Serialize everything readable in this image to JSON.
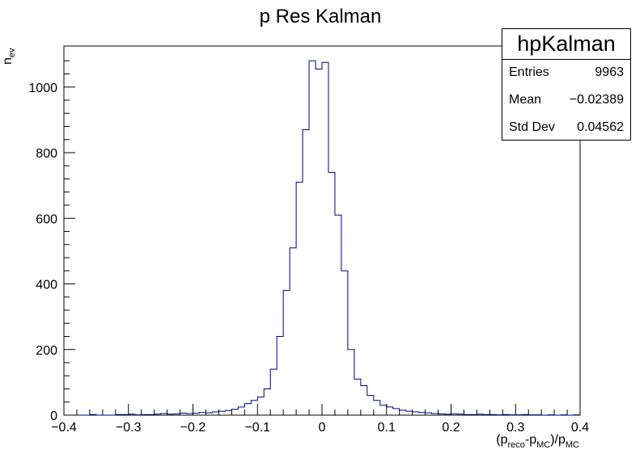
{
  "chart_data": {
    "type": "bar",
    "title": "p Res Kalman",
    "xlabel": "(p_reco-p_MC)/p_MC",
    "ylabel": "n_ev",
    "xlim": [
      -0.4,
      0.4
    ],
    "ylim": [
      0,
      1125
    ],
    "bin_width": 0.01,
    "x_ticks": [
      "−0.4",
      "−0.3",
      "−0.2",
      "−0.1",
      "0",
      "0.1",
      "0.2",
      "0.3",
      "0.4"
    ],
    "y_ticks": [
      "0",
      "200",
      "400",
      "600",
      "800",
      "1000"
    ],
    "line_color": "#000080",
    "bin_lows": [
      -0.4,
      -0.39,
      -0.38,
      -0.37,
      -0.36,
      -0.35,
      -0.34,
      -0.33,
      -0.32,
      -0.31,
      -0.3,
      -0.29,
      -0.28,
      -0.27,
      -0.26,
      -0.25,
      -0.24,
      -0.23,
      -0.22,
      -0.21,
      -0.2,
      -0.19,
      -0.18,
      -0.17,
      -0.16,
      -0.15,
      -0.14,
      -0.13,
      -0.12,
      -0.11,
      -0.1,
      -0.09,
      -0.08,
      -0.07,
      -0.06,
      -0.05,
      -0.04,
      -0.03,
      -0.02,
      -0.01,
      0.0,
      0.01,
      0.02,
      0.03,
      0.04,
      0.05,
      0.06,
      0.07,
      0.08,
      0.09,
      0.1,
      0.11,
      0.12,
      0.13,
      0.14,
      0.15,
      0.16,
      0.17,
      0.18,
      0.19,
      0.2,
      0.21,
      0.22,
      0.23,
      0.24,
      0.25,
      0.26,
      0.27,
      0.28,
      0.29,
      0.3,
      0.31,
      0.32,
      0.33,
      0.34,
      0.35,
      0.36,
      0.37,
      0.38,
      0.39
    ],
    "counts": [
      0,
      0,
      0,
      0,
      2,
      0,
      0,
      0,
      2,
      2,
      3,
      1,
      2,
      2,
      3,
      5,
      3,
      4,
      6,
      5,
      6,
      8,
      7,
      10,
      12,
      14,
      18,
      25,
      35,
      45,
      55,
      80,
      140,
      240,
      380,
      510,
      710,
      870,
      1080,
      1055,
      1075,
      740,
      610,
      440,
      200,
      110,
      90,
      60,
      45,
      30,
      25,
      20,
      15,
      12,
      10,
      8,
      7,
      5,
      4,
      3,
      4,
      3,
      2,
      2,
      3,
      2,
      2,
      1,
      2,
      1,
      1,
      2,
      1,
      1,
      0,
      1,
      0,
      1,
      0,
      1
    ]
  },
  "stats": {
    "title": "hpKalman",
    "rows": [
      {
        "label": "Entries",
        "value": "9963"
      },
      {
        "label": "Mean",
        "value": "−0.02389"
      },
      {
        "label": "Std Dev",
        "value": "0.04562"
      }
    ]
  }
}
